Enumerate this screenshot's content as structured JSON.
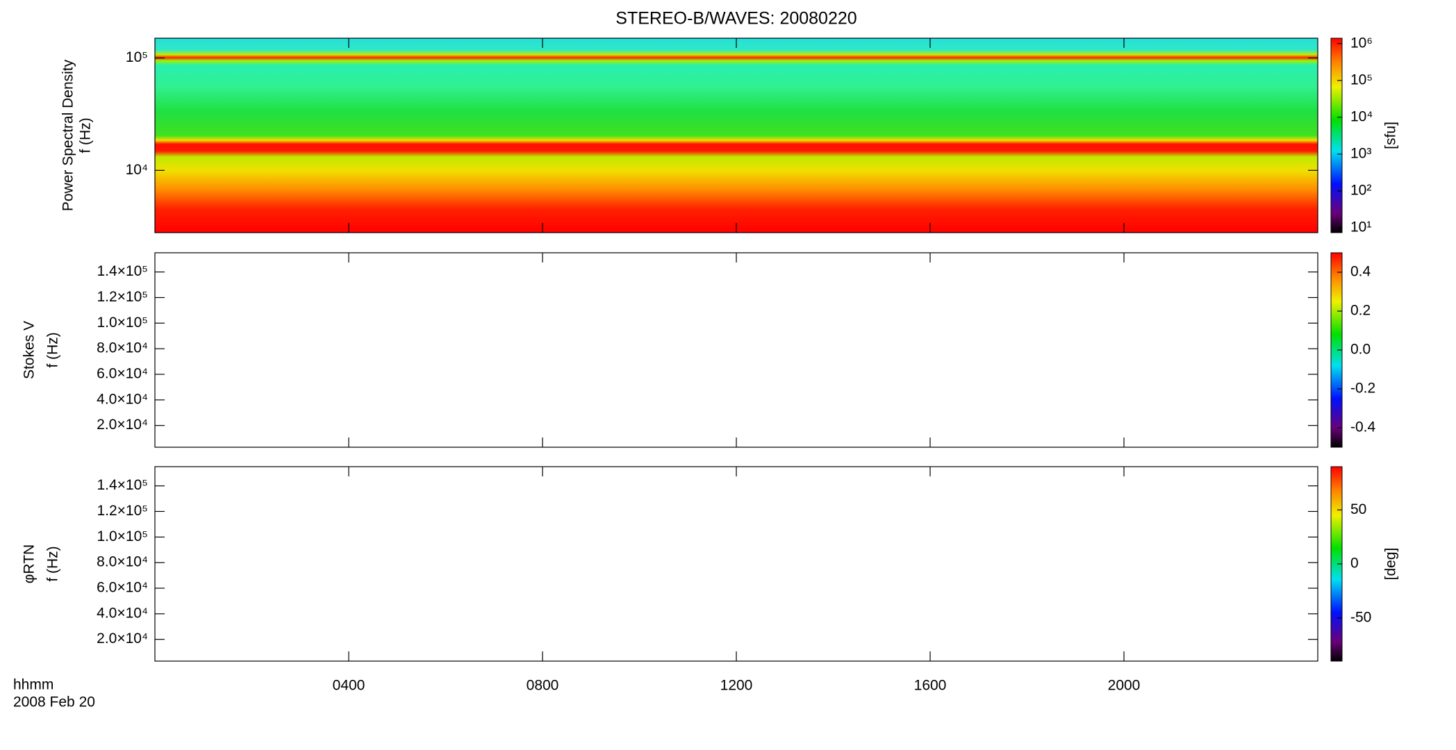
{
  "chart_data": [
    {
      "type": "spectrogram",
      "title": "STEREO-B/WAVES: 20080220",
      "ylabel": [
        "Power Spectral Density",
        "f (Hz)"
      ],
      "ylog": true,
      "ylim": [
        2790,
        150000
      ],
      "yticks": [
        {
          "value": 10000,
          "label": "10⁴"
        },
        {
          "value": 100000,
          "label": "10⁵"
        }
      ],
      "colorbar": {
        "label": "[sfu]",
        "log": true,
        "lim": [
          7.4,
          1400000
        ],
        "ticks": [
          {
            "value": 10,
            "label": "10¹"
          },
          {
            "value": 100,
            "label": "10²"
          },
          {
            "value": 1000,
            "label": "10³"
          },
          {
            "value": 10000,
            "label": "10⁴"
          },
          {
            "value": 100000,
            "label": "10⁵"
          },
          {
            "value": 1000000,
            "label": "10⁶"
          }
        ]
      }
    },
    {
      "type": "spectrogram",
      "ylabel": [
        "Stokes V",
        "f (Hz)"
      ],
      "ylog": false,
      "ylim": [
        3000,
        155000
      ],
      "yticks": [
        {
          "value": 20000,
          "label": "2.0×10⁴"
        },
        {
          "value": 40000,
          "label": "4.0×10⁴"
        },
        {
          "value": 60000,
          "label": "6.0×10⁴"
        },
        {
          "value": 80000,
          "label": "8.0×10⁴"
        },
        {
          "value": 100000,
          "label": "1.0×10⁵"
        },
        {
          "value": 120000,
          "label": "1.2×10⁵"
        },
        {
          "value": 140000,
          "label": "1.4×10⁵"
        }
      ],
      "colorbar": {
        "log": false,
        "lim": [
          -0.5,
          0.5
        ],
        "ticks": [
          -0.4,
          -0.2,
          {
            "value": 0,
            "label": "0.0"
          },
          0.2,
          0.4
        ]
      }
    },
    {
      "type": "spectrogram",
      "ylabel": [
        "φRTN",
        "f (Hz)"
      ],
      "ylog": false,
      "ylim": [
        3000,
        155000
      ],
      "yticks": [
        {
          "value": 20000,
          "label": "2.0×10⁴"
        },
        {
          "value": 40000,
          "label": "4.0×10⁴"
        },
        {
          "value": 60000,
          "label": "6.0×10⁴"
        },
        {
          "value": 80000,
          "label": "8.0×10⁴"
        },
        {
          "value": 100000,
          "label": "1.0×10⁵"
        },
        {
          "value": 120000,
          "label": "1.2×10⁵"
        },
        {
          "value": 140000,
          "label": "1.4×10⁵"
        }
      ],
      "colorbar": {
        "label": "[deg]",
        "log": false,
        "lim": [
          -90,
          90
        ],
        "ticks": [
          -50,
          0,
          50
        ]
      }
    }
  ],
  "x_axis": {
    "label": "hhmm",
    "date": "2008 Feb 20",
    "xlim": [
      0,
      24
    ],
    "xticks": [
      {
        "value": 4,
        "label": "0400"
      },
      {
        "value": 8,
        "label": "0800"
      },
      {
        "value": 12,
        "label": "1200"
      },
      {
        "value": 16,
        "label": "1600"
      },
      {
        "value": 20,
        "label": "2000"
      }
    ]
  }
}
